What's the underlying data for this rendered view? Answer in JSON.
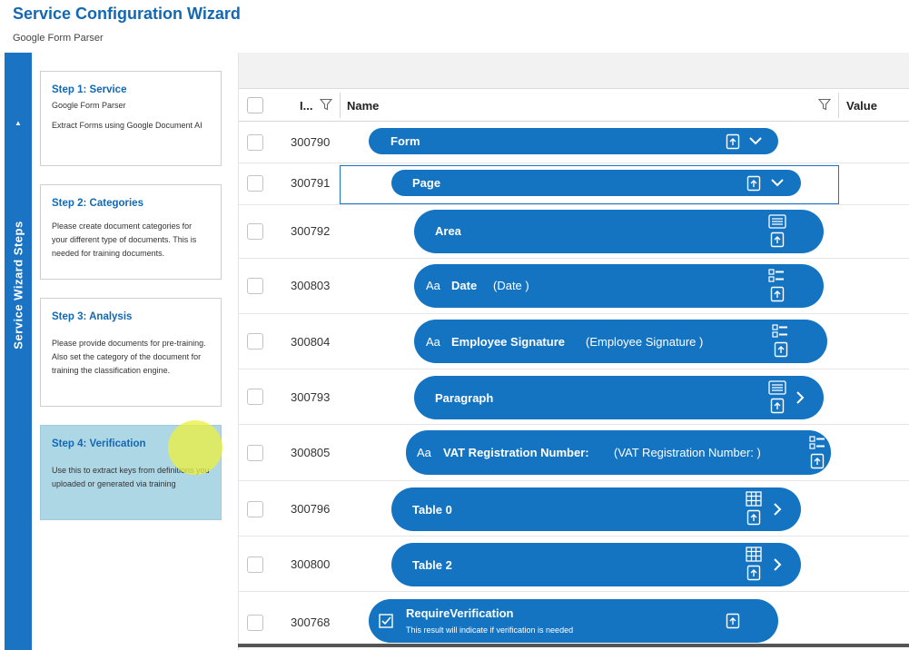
{
  "app": {
    "title": "Service Configuration Wizard",
    "subtitle": "Google Form Parser"
  },
  "sidebar": {
    "tab_label": "Service Wizard Steps",
    "collapse_glyph": "▲"
  },
  "steps": [
    {
      "title": "Step 1: Service",
      "subtitle": "Google Form Parser",
      "description": "Extract Forms using Google Document AI"
    },
    {
      "title": "Step 2: Categories",
      "subtitle": "",
      "description": "Please create document categories for your different type of documents. This is needed for training documents."
    },
    {
      "title": "Step 3: Analysis",
      "subtitle": "",
      "description": "Please provide documents for pre-training. Also set the category of the document for training the classification engine."
    },
    {
      "title": "Step 4: Verification",
      "subtitle": "",
      "description": "Use this to extract keys from definitions you uploaded or generated via training"
    }
  ],
  "grid": {
    "columns": {
      "id": "I...",
      "name": "Name",
      "value": "Value"
    },
    "rows": [
      {
        "id": "300790",
        "label": "Form",
        "prefix": "",
        "type": "",
        "icons": [
          "upload-icon",
          "chevron-down-icon"
        ]
      },
      {
        "id": "300791",
        "label": "Page",
        "prefix": "",
        "type": "",
        "icons": [
          "upload-icon",
          "chevron-down-icon"
        ]
      },
      {
        "id": "300792",
        "label": "Area",
        "prefix": "",
        "type": "",
        "icons": [
          "list-icon",
          "upload-icon"
        ]
      },
      {
        "id": "300803",
        "label": "Date",
        "prefix": "Aa",
        "type": "(Date )",
        "icons": [
          "checklist-icon",
          "upload-icon"
        ]
      },
      {
        "id": "300804",
        "label": "Employee Signature",
        "prefix": "Aa",
        "type": "(Employee Signature )",
        "icons": [
          "checklist-icon",
          "upload-icon"
        ]
      },
      {
        "id": "300793",
        "label": "Paragraph",
        "prefix": "",
        "type": "",
        "icons": [
          "list-icon",
          "upload-icon",
          "chevron-right-icon"
        ]
      },
      {
        "id": "300805",
        "label": "VAT Registration Number:",
        "prefix": "Aa",
        "type": "(VAT Registration Number: )",
        "icons": [
          "checklist-icon",
          "upload-icon"
        ]
      },
      {
        "id": "300796",
        "label": "Table 0",
        "prefix": "",
        "type": "",
        "icons": [
          "table-icon",
          "upload-icon",
          "chevron-right-icon"
        ]
      },
      {
        "id": "300800",
        "label": "Table 2",
        "prefix": "",
        "type": "",
        "icons": [
          "table-icon",
          "upload-icon",
          "chevron-right-icon"
        ]
      },
      {
        "id": "300768",
        "label": "RequireVerification",
        "prefix": "",
        "type": "",
        "subtitle": "This result will indicate if verification is needed",
        "icons": [
          "checkbox-icon",
          "upload-icon"
        ]
      }
    ]
  },
  "colors": {
    "accent": "#1474c2",
    "title": "#1268b3",
    "active_step": "#aed7e6"
  }
}
